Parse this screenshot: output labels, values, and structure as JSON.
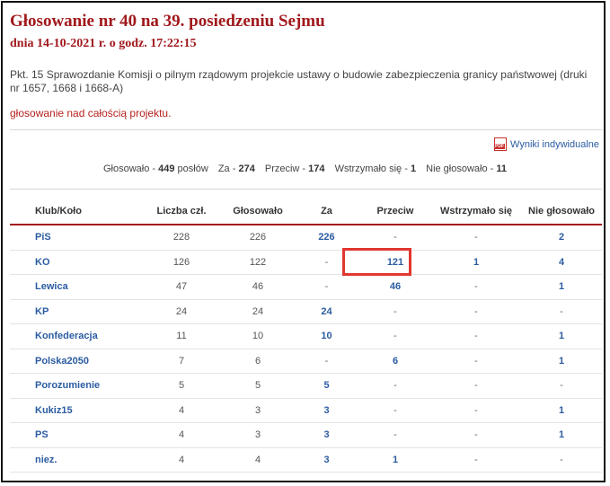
{
  "header": {
    "title": "Głosowanie nr 40 na 39. posiedzeniu Sejmu",
    "date": "dnia 14-10-2021 r. o godz. 17:22:15"
  },
  "description": "Pkt. 15 Sprawozdanie Komisji o pilnym rządowym projekcie ustawy o budowie zabezpieczenia granicy państwowej (druki nr 1657, 1668 i 1668-A)",
  "subject": "głosowanie nad całością projektu.",
  "pdf_link": {
    "label": "Wyniki indywidualne",
    "icon": "pdf-icon"
  },
  "summary": {
    "voted_label": "Głosowało -",
    "voted": "449",
    "voted_unit": "posłów",
    "for_label": "Za -",
    "for": "274",
    "against_label": "Przeciw -",
    "against": "174",
    "abstain_label": "Wstrzymało się -",
    "abstain": "1",
    "absent_label": "Nie głosowało -",
    "absent": "11"
  },
  "table": {
    "headers": [
      "Klub/Koło",
      "Liczba czł.",
      "Głosowało",
      "Za",
      "Przeciw",
      "Wstrzymało się",
      "Nie głosowało"
    ],
    "rows": [
      [
        "PiS",
        "228",
        "226",
        "226",
        "-",
        "-",
        "2"
      ],
      [
        "KO",
        "126",
        "122",
        "-",
        "121",
        "1",
        "4"
      ],
      [
        "Lewica",
        "47",
        "46",
        "-",
        "46",
        "-",
        "1"
      ],
      [
        "KP",
        "24",
        "24",
        "24",
        "-",
        "-",
        "-"
      ],
      [
        "Konfederacja",
        "11",
        "10",
        "10",
        "-",
        "-",
        "1"
      ],
      [
        "Polska2050",
        "7",
        "6",
        "-",
        "6",
        "-",
        "1"
      ],
      [
        "Porozumienie",
        "5",
        "5",
        "5",
        "-",
        "-",
        "-"
      ],
      [
        "Kukiz15",
        "4",
        "3",
        "3",
        "-",
        "-",
        "1"
      ],
      [
        "PS",
        "4",
        "3",
        "3",
        "-",
        "-",
        "1"
      ],
      [
        "niez.",
        "4",
        "4",
        "3",
        "1",
        "-",
        "-"
      ]
    ]
  },
  "colors": {
    "title": "#a0191d",
    "link": "#2b5ca1",
    "highlight": "#e0362f"
  }
}
